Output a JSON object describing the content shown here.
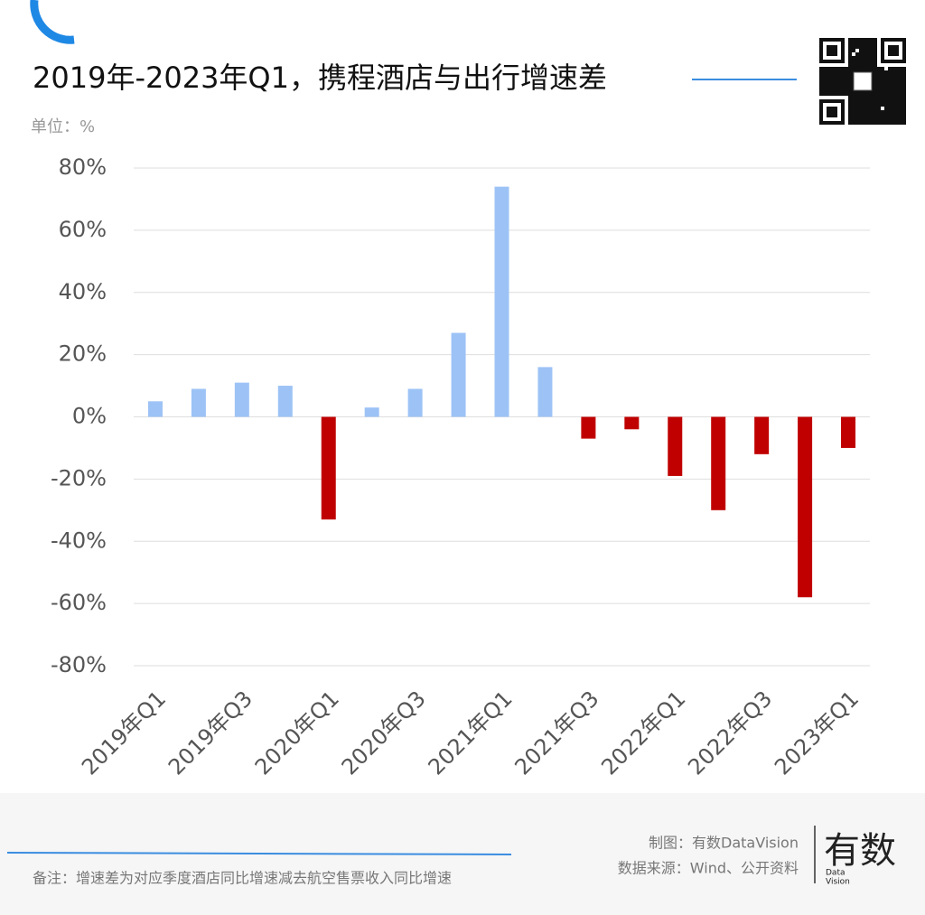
{
  "chart_data": {
    "type": "bar",
    "title": "2019年-2023年Q1，携程酒店与出行增速差",
    "unit_label": "单位：%",
    "categories": [
      "2019年Q1",
      null,
      "2019年Q3",
      null,
      "2020年Q1",
      null,
      "2020年Q3",
      null,
      "2021年Q1",
      null,
      "2021年Q3",
      null,
      "2022年Q1",
      null,
      "2022年Q3",
      null,
      "2023年Q1"
    ],
    "values": [
      5,
      9,
      11,
      10,
      -33,
      3,
      9,
      27,
      74,
      16,
      -7,
      -4,
      -19,
      -30,
      -12,
      -58,
      -10
    ],
    "color_positive": "#9dc3f6",
    "color_negative": "#c00000",
    "ylim": [
      -80,
      80
    ],
    "yticks": [
      {
        "value": -80,
        "label": "-80%"
      },
      {
        "value": -60,
        "label": "-60%"
      },
      {
        "value": -40,
        "label": "-40%"
      },
      {
        "value": -20,
        "label": "-20%"
      },
      {
        "value": 0,
        "label": "0%"
      },
      {
        "value": 20,
        "label": "20%"
      },
      {
        "value": 40,
        "label": "40%"
      },
      {
        "value": 60,
        "label": "60%"
      },
      {
        "value": 80,
        "label": "80%"
      }
    ],
    "grid": true
  },
  "footer": {
    "credit": "制图：有数DataVision",
    "source": "数据来源：Wind、公开资料",
    "note": "备注：增速差为对应季度酒店同比增速减去航空售票收入同比增速"
  },
  "logo": {
    "text": "有数",
    "sub": [
      "Data",
      "Vision"
    ]
  }
}
